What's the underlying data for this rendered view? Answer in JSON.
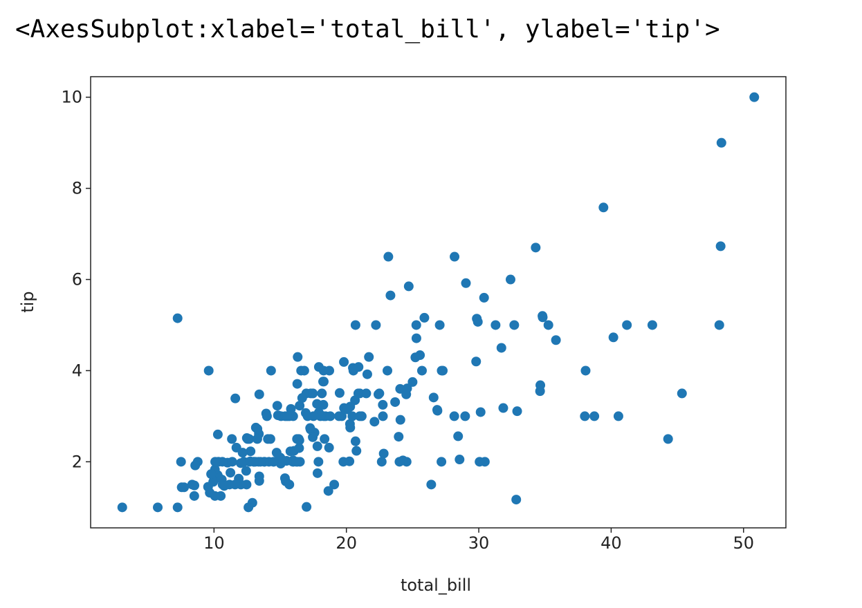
{
  "output_text": "<AxesSubplot:xlabel='total_bill', ylabel='tip'>",
  "chart_data": {
    "type": "scatter",
    "xlabel": "total_bill",
    "ylabel": "tip",
    "color": "#1f77b4",
    "xlim": [
      0.68,
      53.2
    ],
    "ylim": [
      0.55,
      10.45
    ],
    "xticks": [
      10,
      20,
      30,
      40,
      50
    ],
    "yticks": [
      2,
      4,
      6,
      8,
      10
    ],
    "x": [
      16.99,
      10.34,
      21.01,
      23.68,
      24.59,
      25.29,
      8.77,
      26.88,
      15.04,
      14.78,
      10.27,
      35.26,
      15.42,
      18.43,
      14.83,
      21.58,
      10.33,
      16.29,
      16.97,
      20.65,
      17.92,
      20.29,
      15.77,
      39.42,
      19.82,
      17.81,
      13.37,
      12.69,
      21.7,
      19.65,
      9.55,
      18.35,
      15.06,
      20.69,
      17.78,
      24.06,
      16.31,
      16.93,
      18.69,
      31.27,
      16.04,
      17.46,
      13.94,
      9.68,
      30.4,
      18.29,
      22.23,
      32.4,
      28.55,
      18.04,
      12.54,
      10.29,
      34.81,
      9.94,
      25.56,
      19.49,
      38.01,
      26.41,
      11.24,
      48.27,
      20.29,
      13.81,
      11.02,
      18.29,
      17.59,
      20.08,
      16.45,
      3.07,
      20.23,
      15.01,
      12.02,
      17.07,
      26.86,
      25.28,
      14.73,
      10.51,
      17.92,
      27.2,
      22.76,
      17.29,
      19.44,
      16.66,
      10.07,
      32.68,
      15.98,
      34.83,
      13.03,
      18.28,
      24.71,
      21.16,
      28.97,
      22.49,
      5.75,
      16.32,
      22.75,
      40.17,
      27.28,
      12.03,
      21.01,
      12.46,
      11.35,
      15.38,
      44.3,
      22.42,
      20.92,
      15.36,
      20.49,
      25.21,
      18.24,
      14.31,
      14.0,
      7.25,
      38.07,
      23.95,
      25.71,
      17.31,
      29.93,
      10.65,
      12.43,
      24.08,
      11.69,
      13.42,
      14.26,
      15.95,
      12.48,
      29.8,
      8.52,
      14.52,
      11.38,
      22.82,
      19.08,
      20.27,
      11.17,
      12.26,
      18.26,
      8.51,
      10.33,
      14.15,
      16.0,
      13.16,
      17.47,
      34.3,
      41.19,
      27.05,
      16.43,
      8.35,
      18.64,
      11.87,
      9.78,
      7.51,
      14.07,
      13.13,
      17.26,
      24.55,
      19.77,
      29.85,
      48.17,
      25.0,
      13.39,
      16.49,
      21.5,
      12.66,
      16.21,
      13.81,
      17.51,
      24.52,
      20.76,
      31.71,
      10.59,
      10.63,
      50.81,
      15.81,
      7.25,
      31.85,
      16.82,
      32.9,
      17.89,
      14.48,
      9.6,
      34.63,
      34.65,
      23.33,
      45.35,
      23.17,
      40.55,
      20.69,
      20.9,
      30.46,
      18.15,
      23.1,
      15.69,
      19.81,
      28.44,
      15.48,
      16.58,
      7.56,
      10.34,
      43.11,
      13.0,
      13.51,
      18.71,
      12.74,
      13.0,
      16.4,
      20.53,
      16.47,
      26.59,
      38.73,
      24.27,
      12.76,
      30.06,
      25.89,
      48.33,
      13.27,
      28.17,
      12.9,
      28.15,
      11.59,
      7.74,
      30.14,
      12.16,
      13.42,
      8.58,
      15.98,
      13.42,
      16.27,
      10.09,
      20.45,
      13.28,
      22.12,
      24.01,
      15.69,
      11.61,
      10.77,
      15.53,
      10.07,
      12.6,
      32.83,
      35.83,
      29.03,
      27.18,
      22.67,
      17.82,
      18.78
    ],
    "values": [
      1.01,
      1.66,
      3.5,
      3.31,
      3.61,
      4.71,
      2.0,
      3.12,
      1.96,
      3.23,
      1.71,
      5.0,
      1.57,
      3.0,
      3.02,
      3.92,
      1.67,
      3.71,
      3.5,
      3.35,
      4.08,
      2.75,
      2.23,
      7.58,
      3.18,
      2.34,
      2.0,
      2.0,
      4.3,
      3.0,
      1.45,
      2.5,
      3.0,
      2.45,
      3.27,
      3.6,
      2.0,
      3.07,
      2.31,
      5.0,
      2.24,
      2.54,
      3.06,
      1.32,
      5.6,
      3.0,
      5.0,
      6.0,
      2.05,
      3.0,
      2.5,
      2.6,
      5.2,
      1.56,
      4.34,
      3.51,
      3.0,
      1.5,
      1.76,
      6.73,
      3.21,
      2.0,
      1.98,
      3.76,
      2.64,
      3.15,
      2.47,
      1.0,
      2.01,
      2.09,
      1.97,
      3.0,
      3.14,
      5.0,
      2.2,
      1.25,
      3.08,
      4.0,
      3.0,
      2.71,
      3.0,
      3.4,
      1.83,
      5.0,
      2.03,
      5.17,
      2.0,
      4.0,
      5.85,
      3.0,
      3.0,
      3.5,
      1.0,
      4.3,
      3.25,
      4.73,
      4.0,
      1.5,
      3.0,
      1.5,
      2.5,
      3.0,
      2.5,
      3.48,
      4.08,
      1.64,
      4.06,
      4.29,
      3.76,
      4.0,
      3.0,
      1.0,
      4.0,
      2.55,
      4.0,
      3.5,
      5.07,
      1.5,
      1.8,
      2.92,
      2.31,
      1.68,
      2.5,
      2.0,
      2.52,
      4.2,
      1.48,
      2.0,
      2.0,
      2.18,
      1.5,
      2.83,
      1.5,
      2.0,
      3.25,
      1.25,
      2.0,
      2.0,
      2.0,
      2.75,
      3.5,
      6.7,
      5.0,
      5.0,
      2.3,
      1.5,
      1.36,
      1.63,
      1.73,
      2.0,
      2.5,
      2.0,
      2.74,
      2.0,
      2.0,
      5.14,
      5.0,
      3.75,
      2.61,
      2.0,
      3.5,
      2.5,
      2.0,
      2.0,
      3.0,
      3.48,
      2.24,
      4.5,
      1.61,
      2.0,
      10.0,
      3.16,
      5.15,
      3.18,
      4.0,
      3.11,
      2.0,
      2.0,
      4.0,
      3.55,
      3.68,
      5.65,
      3.5,
      6.5,
      3.0,
      5.0,
      3.5,
      2.0,
      3.5,
      4.0,
      1.5,
      4.19,
      2.56,
      2.02,
      4.0,
      1.44,
      2.0,
      5.0,
      2.0,
      2.0,
      4.0,
      2.01,
      2.0,
      2.5,
      4.0,
      3.23,
      3.41,
      3.0,
      2.03,
      2.23,
      2.0,
      5.16,
      9.0,
      2.5,
      6.5,
      1.1,
      3.0,
      1.5,
      1.44,
      3.09,
      2.2,
      3.48,
      1.92,
      3.0,
      1.58,
      2.5,
      2.0,
      3.0,
      2.72,
      2.88,
      2.0,
      3.0,
      3.39,
      1.47,
      3.0,
      1.25,
      1.0,
      1.17,
      4.67,
      5.92,
      2.0,
      2.0,
      1.75,
      3.0
    ]
  }
}
